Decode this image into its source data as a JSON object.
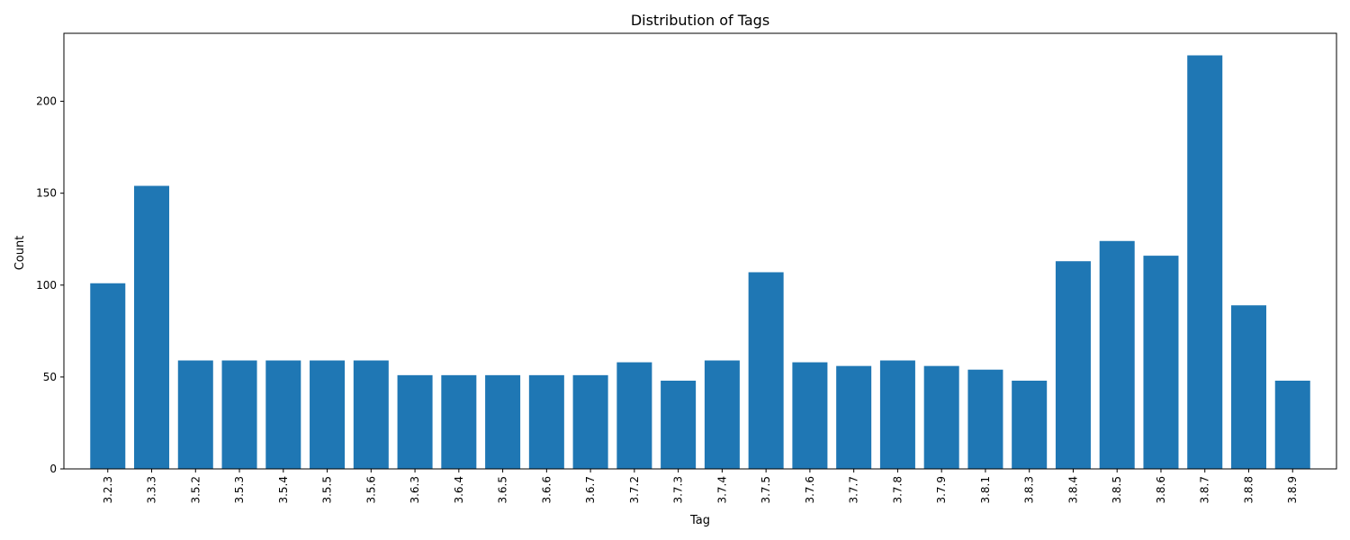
{
  "chart_data": {
    "type": "bar",
    "title": "Distribution of Tags",
    "xlabel": "Tag",
    "ylabel": "Count",
    "categories": [
      "3.2.3",
      "3.3.3",
      "3.5.2",
      "3.5.3",
      "3.5.4",
      "3.5.5",
      "3.5.6",
      "3.6.3",
      "3.6.4",
      "3.6.5",
      "3.6.6",
      "3.6.7",
      "3.7.2",
      "3.7.3",
      "3.7.4",
      "3.7.5",
      "3.7.6",
      "3.7.7",
      "3.7.8",
      "3.7.9",
      "3.8.1",
      "3.8.3",
      "3.8.4",
      "3.8.5",
      "3.8.6",
      "3.8.7",
      "3.8.8",
      "3.8.9"
    ],
    "values": [
      101,
      154,
      59,
      59,
      59,
      59,
      59,
      51,
      51,
      51,
      51,
      51,
      58,
      48,
      59,
      107,
      58,
      56,
      59,
      56,
      54,
      48,
      113,
      124,
      116,
      225,
      89,
      48
    ],
    "ylim": [
      0,
      237
    ],
    "yticks": [
      0,
      50,
      100,
      150,
      200
    ],
    "grid": false,
    "legend": "none",
    "bar_color": "#1f77b4"
  }
}
